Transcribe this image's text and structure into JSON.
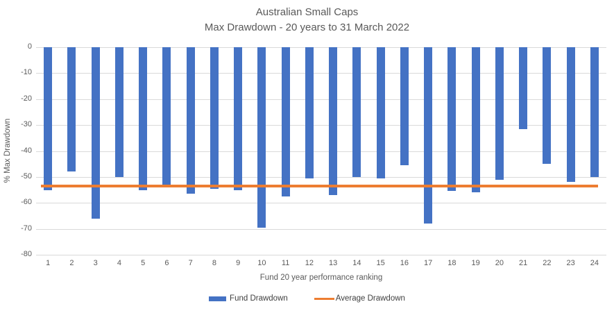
{
  "title": {
    "line1": "Australian Small Caps",
    "line2": "Max Drawdown - 20 years to 31 March 2022"
  },
  "axes": {
    "x_title": "Fund 20 year performance ranking",
    "y_title": "% Max Drawdown"
  },
  "legend": {
    "fund_label": "Fund Drawdown",
    "average_label": "Average Drawdown"
  },
  "colors": {
    "bar": "#4472C4",
    "average_line": "#ED7D31",
    "gridline": "#D9D9D9",
    "text": "#595959"
  },
  "chart_data": {
    "type": "bar",
    "title": "Australian Small Caps",
    "subtitle": "Max Drawdown - 20 years to 31 March 2022",
    "xlabel": "Fund 20 year performance ranking",
    "ylabel": "% Max Drawdown",
    "categories": [
      1,
      2,
      3,
      4,
      5,
      6,
      7,
      8,
      9,
      10,
      11,
      12,
      13,
      14,
      15,
      16,
      17,
      18,
      19,
      20,
      21,
      22,
      23,
      24
    ],
    "series": [
      {
        "name": "Fund Drawdown",
        "type": "bar",
        "color": "#4472C4",
        "values": [
          -55,
          -48,
          -66,
          -50,
          -55,
          -54,
          -56.5,
          -54.5,
          -55,
          -69.5,
          -57.5,
          -50.5,
          -57,
          -50,
          -50.5,
          -45.5,
          -68,
          -55.5,
          -56,
          -51,
          -31.5,
          -45,
          -52,
          -50
        ]
      },
      {
        "name": "Average Drawdown",
        "type": "line",
        "color": "#ED7D31",
        "values": [
          -53.5
        ]
      }
    ],
    "ylim": [
      -80,
      0
    ],
    "ytick_interval": 10,
    "grid": true,
    "legend_position": "bottom"
  }
}
